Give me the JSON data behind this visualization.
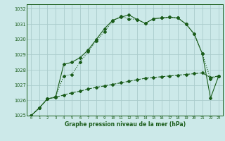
{
  "background_color": "#cce9e9",
  "grid_color": "#aacccc",
  "line_color": "#1a5c1a",
  "title": "Graphe pression niveau de la mer (hPa)",
  "title_color": "#1a5c1a",
  "xlim": [
    -0.5,
    23.5
  ],
  "ylim": [
    1025,
    1032.3
  ],
  "xticks": [
    0,
    1,
    2,
    3,
    4,
    5,
    6,
    7,
    8,
    9,
    10,
    11,
    12,
    13,
    14,
    15,
    16,
    17,
    18,
    19,
    20,
    21,
    22,
    23
  ],
  "yticks": [
    1025,
    1026,
    1027,
    1028,
    1029,
    1030,
    1031,
    1032
  ],
  "series1_x": [
    0,
    1,
    2,
    3,
    4,
    5,
    6,
    7,
    8,
    9,
    10,
    11,
    12,
    13,
    14,
    15,
    16,
    17,
    18,
    19,
    20,
    21,
    22,
    23
  ],
  "series1_y": [
    1025.0,
    1025.5,
    1026.1,
    1026.2,
    1026.35,
    1026.5,
    1026.6,
    1026.75,
    1026.85,
    1026.95,
    1027.05,
    1027.15,
    1027.25,
    1027.35,
    1027.45,
    1027.5,
    1027.55,
    1027.6,
    1027.65,
    1027.7,
    1027.75,
    1027.8,
    1027.5,
    1027.6
  ],
  "series2_x": [
    0,
    1,
    2,
    3,
    4,
    5,
    6,
    7,
    8,
    9,
    10,
    11,
    12,
    13,
    14,
    15,
    16,
    17,
    18,
    19,
    20,
    21,
    22,
    23
  ],
  "series2_y": [
    1025.0,
    1025.5,
    1026.1,
    1026.2,
    1028.35,
    1028.5,
    1028.8,
    1029.3,
    1030.0,
    1030.7,
    1031.25,
    1031.45,
    1031.6,
    1031.3,
    1031.05,
    1031.35,
    1031.4,
    1031.45,
    1031.4,
    1031.0,
    1030.35,
    1029.05,
    1026.15,
    1027.6
  ],
  "series3_x": [
    0,
    1,
    2,
    3,
    4,
    5,
    6,
    7,
    8,
    9,
    10,
    11,
    12,
    13,
    14,
    15,
    16,
    17,
    18,
    19,
    20,
    21,
    22,
    23
  ],
  "series3_y": [
    1025.0,
    1025.5,
    1026.1,
    1026.25,
    1027.6,
    1027.7,
    1028.5,
    1029.2,
    1029.9,
    1030.5,
    1031.2,
    1031.5,
    1031.35,
    1031.3,
    1031.05,
    1031.35,
    1031.4,
    1031.45,
    1031.4,
    1031.0,
    1030.35,
    1029.05,
    1027.4,
    1027.6
  ]
}
